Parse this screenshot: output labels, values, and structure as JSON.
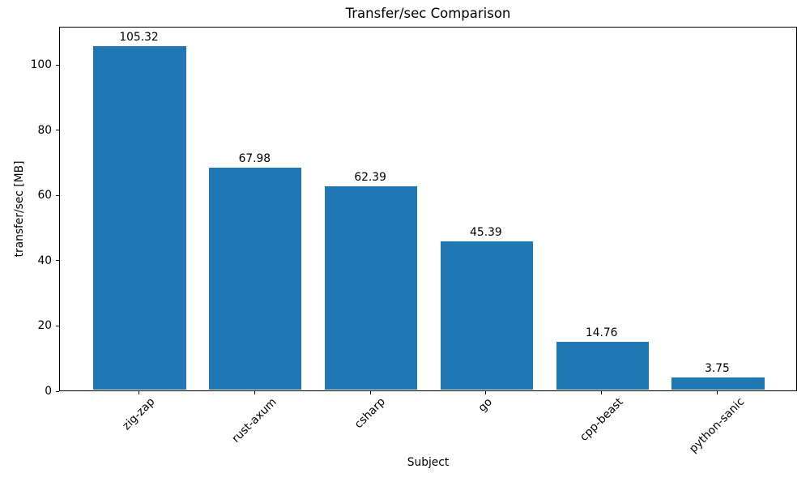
{
  "chart_data": {
    "type": "bar",
    "title": "Transfer/sec Comparison",
    "xlabel": "Subject",
    "ylabel": "transfer/sec [MB]",
    "categories": [
      "zig-zap",
      "rust-axum",
      "csharp",
      "go",
      "cpp-beast",
      "python-sanic"
    ],
    "values": [
      105.32,
      67.98,
      62.39,
      45.39,
      14.76,
      3.75
    ],
    "value_labels": [
      "105.32",
      "67.98",
      "62.39",
      "45.39",
      "14.76",
      "3.75"
    ],
    "yticks": [
      0,
      20,
      40,
      60,
      80,
      100
    ],
    "ylim": [
      0,
      111.7
    ],
    "bar_color": "#1f77b4",
    "text_color": "#000000",
    "background": "#ffffff",
    "legend": "none",
    "grid": false,
    "x_tick_rotation_deg": 45
  }
}
